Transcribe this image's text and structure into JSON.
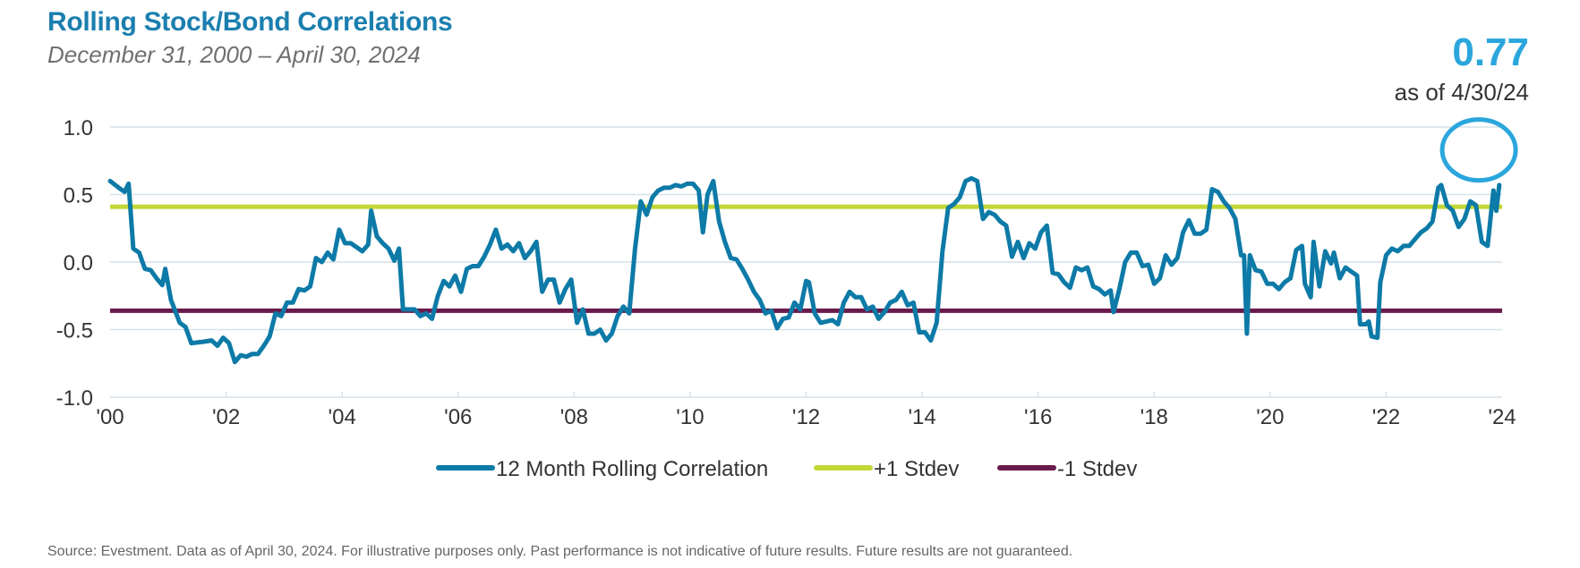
{
  "header": {
    "title": "Rolling Stock/Bond Correlations",
    "subtitle": "December 31, 2000 – April 30, 2024",
    "current_value": "0.77",
    "as_of": "as of 4/30/24"
  },
  "footer": {
    "source": "Source: Evestment. Data as of April 30, 2024. For illustrative purposes only. Past performance is not indicative of future results. Future results are not guaranteed."
  },
  "colors": {
    "series": "#0d7aa7",
    "plus_stdev": "#c2d736",
    "minus_stdev": "#6b1a4c",
    "highlight_circle": "#2aa6dd",
    "grid": "#d6e1e8"
  },
  "chart_data": {
    "type": "line",
    "xlim": [
      2000,
      2024
    ],
    "ylim": [
      -1.0,
      1.0
    ],
    "x_ticks": [
      2000,
      2002,
      2004,
      2006,
      2008,
      2010,
      2012,
      2014,
      2016,
      2018,
      2020,
      2022,
      2024
    ],
    "x_tick_labels": [
      "'00",
      "'02",
      "'04",
      "'06",
      "'08",
      "'10",
      "'12",
      "'14",
      "'16",
      "'18",
      "'20",
      "'22",
      "'24"
    ],
    "y_ticks": [
      1.0,
      0.5,
      0.0,
      -0.5,
      -1.0
    ],
    "y_tick_labels": [
      "1.0",
      "0.5",
      "0.0",
      "-0.5",
      "-1.0"
    ],
    "grid": true,
    "legend_position": "bottom",
    "legend": [
      "12 Month Rolling Correlation",
      "+1 Stdev",
      "-1 Stdev"
    ],
    "reference_lines": [
      {
        "name": "+1 Stdev",
        "y": 0.41
      },
      {
        "name": "-1 Stdev",
        "y": -0.36
      }
    ],
    "highlight": {
      "label": "0.77",
      "x": 2023.6,
      "y": 0.83
    },
    "series": [
      {
        "name": "12 Month Rolling Correlation",
        "points": [
          [
            2000.0,
            0.6
          ],
          [
            2000.15,
            0.55
          ],
          [
            2000.25,
            0.52
          ],
          [
            2000.32,
            0.58
          ],
          [
            2000.4,
            0.1
          ],
          [
            2000.5,
            0.07
          ],
          [
            2000.6,
            -0.05
          ],
          [
            2000.7,
            -0.06
          ],
          [
            2000.8,
            -0.12
          ],
          [
            2000.9,
            -0.17
          ],
          [
            2000.95,
            -0.05
          ],
          [
            2001.05,
            -0.28
          ],
          [
            2001.2,
            -0.45
          ],
          [
            2001.3,
            -0.48
          ],
          [
            2001.4,
            -0.6
          ],
          [
            2001.6,
            -0.59
          ],
          [
            2001.75,
            -0.58
          ],
          [
            2001.85,
            -0.62
          ],
          [
            2001.95,
            -0.56
          ],
          [
            2002.05,
            -0.6
          ],
          [
            2002.15,
            -0.74
          ],
          [
            2002.25,
            -0.69
          ],
          [
            2002.35,
            -0.7
          ],
          [
            2002.45,
            -0.68
          ],
          [
            2002.55,
            -0.68
          ],
          [
            2002.65,
            -0.62
          ],
          [
            2002.75,
            -0.55
          ],
          [
            2002.85,
            -0.38
          ],
          [
            2002.95,
            -0.4
          ],
          [
            2003.05,
            -0.3
          ],
          [
            2003.15,
            -0.3
          ],
          [
            2003.25,
            -0.2
          ],
          [
            2003.35,
            -0.21
          ],
          [
            2003.45,
            -0.18
          ],
          [
            2003.55,
            0.03
          ],
          [
            2003.65,
            0.0
          ],
          [
            2003.75,
            0.07
          ],
          [
            2003.85,
            0.02
          ],
          [
            2003.95,
            0.24
          ],
          [
            2004.05,
            0.14
          ],
          [
            2004.15,
            0.14
          ],
          [
            2004.25,
            0.11
          ],
          [
            2004.35,
            0.08
          ],
          [
            2004.45,
            0.13
          ],
          [
            2004.5,
            0.38
          ],
          [
            2004.6,
            0.19
          ],
          [
            2004.7,
            0.14
          ],
          [
            2004.8,
            0.1
          ],
          [
            2004.9,
            0.01
          ],
          [
            2004.98,
            0.1
          ],
          [
            2005.05,
            -0.35
          ],
          [
            2005.15,
            -0.35
          ],
          [
            2005.25,
            -0.35
          ],
          [
            2005.35,
            -0.4
          ],
          [
            2005.45,
            -0.38
          ],
          [
            2005.55,
            -0.42
          ],
          [
            2005.65,
            -0.25
          ],
          [
            2005.75,
            -0.14
          ],
          [
            2005.85,
            -0.18
          ],
          [
            2005.95,
            -0.1
          ],
          [
            2006.05,
            -0.22
          ],
          [
            2006.15,
            -0.05
          ],
          [
            2006.25,
            -0.03
          ],
          [
            2006.35,
            -0.03
          ],
          [
            2006.45,
            0.04
          ],
          [
            2006.55,
            0.13
          ],
          [
            2006.65,
            0.24
          ],
          [
            2006.75,
            0.1
          ],
          [
            2006.85,
            0.13
          ],
          [
            2006.95,
            0.08
          ],
          [
            2007.05,
            0.14
          ],
          [
            2007.15,
            0.03
          ],
          [
            2007.25,
            0.08
          ],
          [
            2007.35,
            0.15
          ],
          [
            2007.45,
            -0.22
          ],
          [
            2007.55,
            -0.13
          ],
          [
            2007.65,
            -0.13
          ],
          [
            2007.75,
            -0.3
          ],
          [
            2007.85,
            -0.2
          ],
          [
            2007.95,
            -0.13
          ],
          [
            2008.05,
            -0.45
          ],
          [
            2008.15,
            -0.35
          ],
          [
            2008.25,
            -0.53
          ],
          [
            2008.35,
            -0.53
          ],
          [
            2008.45,
            -0.5
          ],
          [
            2008.55,
            -0.58
          ],
          [
            2008.65,
            -0.53
          ],
          [
            2008.75,
            -0.4
          ],
          [
            2008.85,
            -0.33
          ],
          [
            2008.95,
            -0.38
          ],
          [
            2009.05,
            0.1
          ],
          [
            2009.15,
            0.45
          ],
          [
            2009.25,
            0.35
          ],
          [
            2009.35,
            0.48
          ],
          [
            2009.45,
            0.53
          ],
          [
            2009.55,
            0.55
          ],
          [
            2009.65,
            0.55
          ],
          [
            2009.75,
            0.57
          ],
          [
            2009.85,
            0.56
          ],
          [
            2009.95,
            0.58
          ],
          [
            2010.05,
            0.58
          ],
          [
            2010.15,
            0.53
          ],
          [
            2010.22,
            0.22
          ],
          [
            2010.3,
            0.5
          ],
          [
            2010.4,
            0.6
          ],
          [
            2010.5,
            0.3
          ],
          [
            2010.6,
            0.15
          ],
          [
            2010.7,
            0.03
          ],
          [
            2010.8,
            0.02
          ],
          [
            2010.9,
            -0.05
          ],
          [
            2011.0,
            -0.13
          ],
          [
            2011.1,
            -0.22
          ],
          [
            2011.2,
            -0.28
          ],
          [
            2011.3,
            -0.38
          ],
          [
            2011.4,
            -0.36
          ],
          [
            2011.5,
            -0.49
          ],
          [
            2011.6,
            -0.42
          ],
          [
            2011.7,
            -0.41
          ],
          [
            2011.8,
            -0.3
          ],
          [
            2011.9,
            -0.35
          ],
          [
            2012.0,
            -0.14
          ],
          [
            2012.05,
            -0.15
          ],
          [
            2012.15,
            -0.38
          ],
          [
            2012.25,
            -0.45
          ],
          [
            2012.35,
            -0.44
          ],
          [
            2012.45,
            -0.43
          ],
          [
            2012.55,
            -0.46
          ],
          [
            2012.65,
            -0.3
          ],
          [
            2012.75,
            -0.22
          ],
          [
            2012.85,
            -0.26
          ],
          [
            2012.95,
            -0.26
          ],
          [
            2013.05,
            -0.35
          ],
          [
            2013.15,
            -0.33
          ],
          [
            2013.25,
            -0.42
          ],
          [
            2013.35,
            -0.37
          ],
          [
            2013.45,
            -0.3
          ],
          [
            2013.55,
            -0.28
          ],
          [
            2013.65,
            -0.22
          ],
          [
            2013.75,
            -0.32
          ],
          [
            2013.85,
            -0.3
          ],
          [
            2013.95,
            -0.52
          ],
          [
            2014.05,
            -0.52
          ],
          [
            2014.15,
            -0.58
          ],
          [
            2014.25,
            -0.45
          ],
          [
            2014.35,
            0.08
          ],
          [
            2014.45,
            0.4
          ],
          [
            2014.55,
            0.43
          ],
          [
            2014.65,
            0.48
          ],
          [
            2014.75,
            0.6
          ],
          [
            2014.85,
            0.62
          ],
          [
            2014.95,
            0.6
          ],
          [
            2015.05,
            0.32
          ],
          [
            2015.15,
            0.37
          ],
          [
            2015.25,
            0.35
          ],
          [
            2015.35,
            0.3
          ],
          [
            2015.45,
            0.27
          ],
          [
            2015.55,
            0.04
          ],
          [
            2015.65,
            0.15
          ],
          [
            2015.75,
            0.03
          ],
          [
            2015.85,
            0.14
          ],
          [
            2015.95,
            0.1
          ],
          [
            2016.05,
            0.22
          ],
          [
            2016.15,
            0.27
          ],
          [
            2016.25,
            -0.08
          ],
          [
            2016.35,
            -0.09
          ],
          [
            2016.45,
            -0.15
          ],
          [
            2016.55,
            -0.19
          ],
          [
            2016.65,
            -0.04
          ],
          [
            2016.75,
            -0.06
          ],
          [
            2016.85,
            -0.04
          ],
          [
            2016.95,
            -0.18
          ],
          [
            2017.05,
            -0.2
          ],
          [
            2017.15,
            -0.24
          ],
          [
            2017.25,
            -0.21
          ],
          [
            2017.3,
            -0.37
          ],
          [
            2017.4,
            -0.2
          ],
          [
            2017.5,
            0.0
          ],
          [
            2017.6,
            0.07
          ],
          [
            2017.7,
            0.07
          ],
          [
            2017.8,
            -0.03
          ],
          [
            2017.9,
            -0.02
          ],
          [
            2018.0,
            -0.16
          ],
          [
            2018.1,
            -0.12
          ],
          [
            2018.2,
            0.05
          ],
          [
            2018.3,
            -0.02
          ],
          [
            2018.4,
            0.03
          ],
          [
            2018.5,
            0.22
          ],
          [
            2018.6,
            0.31
          ],
          [
            2018.7,
            0.21
          ],
          [
            2018.8,
            0.21
          ],
          [
            2018.9,
            0.24
          ],
          [
            2019.0,
            0.54
          ],
          [
            2019.1,
            0.52
          ],
          [
            2019.2,
            0.45
          ],
          [
            2019.3,
            0.4
          ],
          [
            2019.4,
            0.32
          ],
          [
            2019.5,
            0.05
          ],
          [
            2019.55,
            0.05
          ],
          [
            2019.6,
            -0.53
          ],
          [
            2019.65,
            0.05
          ],
          [
            2019.75,
            -0.06
          ],
          [
            2019.85,
            -0.07
          ],
          [
            2019.95,
            -0.16
          ],
          [
            2020.05,
            -0.16
          ],
          [
            2020.15,
            -0.2
          ],
          [
            2020.25,
            -0.15
          ],
          [
            2020.35,
            -0.12
          ],
          [
            2020.45,
            0.09
          ],
          [
            2020.55,
            0.12
          ],
          [
            2020.6,
            -0.16
          ],
          [
            2020.7,
            -0.26
          ],
          [
            2020.75,
            0.15
          ],
          [
            2020.85,
            -0.18
          ],
          [
            2020.95,
            0.08
          ],
          [
            2021.05,
            -0.01
          ],
          [
            2021.1,
            0.07
          ],
          [
            2021.2,
            -0.12
          ],
          [
            2021.3,
            -0.04
          ],
          [
            2021.4,
            -0.07
          ],
          [
            2021.5,
            -0.1
          ],
          [
            2021.55,
            -0.46
          ],
          [
            2021.65,
            -0.46
          ],
          [
            2021.7,
            -0.44
          ],
          [
            2021.75,
            -0.55
          ],
          [
            2021.85,
            -0.56
          ],
          [
            2021.9,
            -0.15
          ],
          [
            2022.0,
            0.05
          ],
          [
            2022.1,
            0.1
          ],
          [
            2022.2,
            0.08
          ],
          [
            2022.3,
            0.12
          ],
          [
            2022.4,
            0.12
          ],
          [
            2022.5,
            0.17
          ],
          [
            2022.6,
            0.22
          ],
          [
            2022.7,
            0.25
          ],
          [
            2022.8,
            0.3
          ],
          [
            2022.9,
            0.55
          ],
          [
            2022.95,
            0.57
          ],
          [
            2023.05,
            0.42
          ],
          [
            2023.15,
            0.38
          ],
          [
            2023.25,
            0.26
          ],
          [
            2023.35,
            0.32
          ],
          [
            2023.45,
            0.45
          ],
          [
            2023.55,
            0.42
          ],
          [
            2023.65,
            0.15
          ],
          [
            2023.75,
            0.12
          ],
          [
            2023.85,
            0.53
          ],
          [
            2023.9,
            0.38
          ],
          [
            2023.95,
            0.57
          ]
        ]
      }
    ]
  }
}
